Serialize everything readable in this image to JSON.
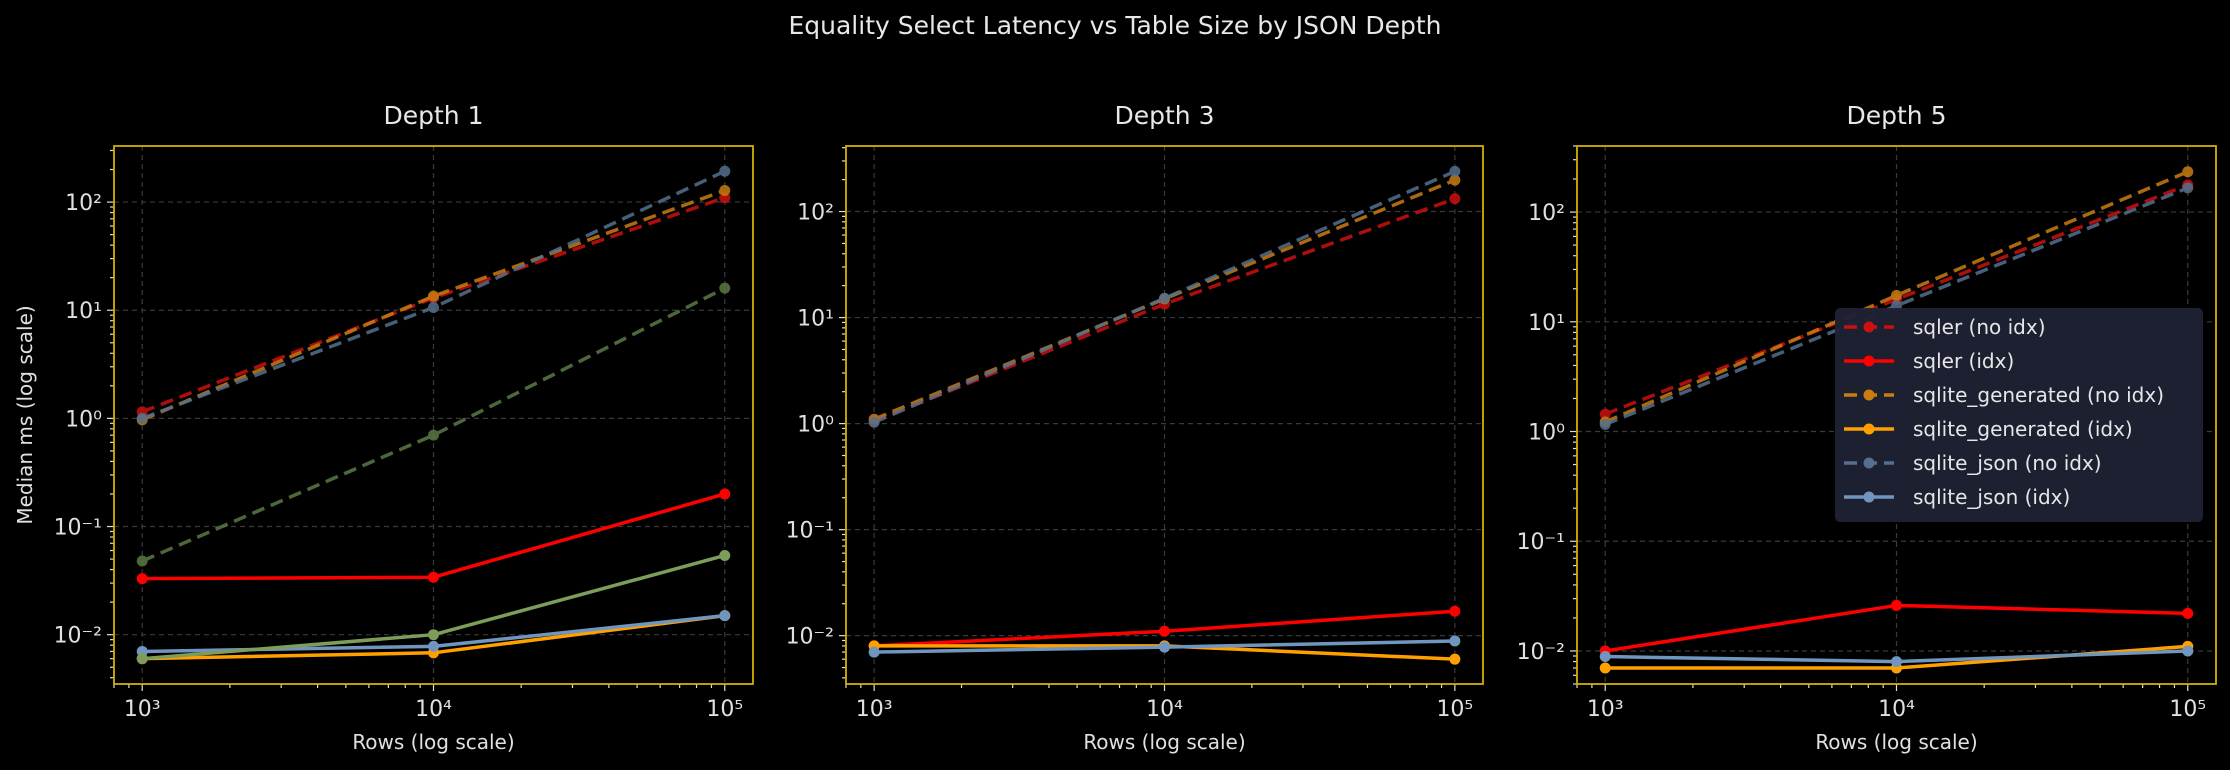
{
  "title": "Equality Select Latency vs Table Size by JSON Depth",
  "chart_data": [
    {
      "type": "line",
      "title": "Depth 1",
      "xlabel": "Rows (log scale)",
      "ylabel": "Median ms (log scale)",
      "xscale": "log",
      "yscale": "log",
      "x": [
        1000,
        10000,
        100000
      ],
      "xlim": [
        800,
        125000
      ],
      "ylim": [
        0.0035,
        330
      ],
      "xticks": [
        1000,
        10000,
        100000
      ],
      "xtick_labels": [
        "10³",
        "10⁴",
        "10⁵"
      ],
      "yticks": [
        0.01,
        0.1,
        1,
        10,
        100
      ],
      "ytick_labels": [
        "10⁻²",
        "10⁻¹",
        "10⁰",
        "10¹",
        "10²"
      ],
      "grid": true,
      "legend": null,
      "series": [
        {
          "name": "sqler (no idx)",
          "style": "dashed",
          "color": "#cc1010",
          "values": [
            1.15,
            13,
            110
          ]
        },
        {
          "name": "sqler (idx)",
          "style": "solid",
          "color": "#ff0000",
          "values": [
            0.033,
            0.034,
            0.2
          ]
        },
        {
          "name": "sqlite_generated (no idx)",
          "style": "dashed",
          "color": "#c97d10",
          "values": [
            0.97,
            13.5,
            128
          ]
        },
        {
          "name": "sqlite_generated (idx)",
          "style": "solid",
          "color": "#ffa000",
          "values": [
            0.006,
            0.0068,
            0.015
          ]
        },
        {
          "name": "sqlite_json (no idx)",
          "style": "dashed",
          "color": "#54708e",
          "values": [
            1.0,
            10.6,
            193
          ]
        },
        {
          "name": "sqlite_json (idx)",
          "style": "solid",
          "color": "#7096bf",
          "values": [
            0.007,
            0.0078,
            0.015
          ]
        },
        {
          "style": "dashed",
          "color": "#5b7a45",
          "values": [
            0.048,
            0.7,
            16
          ]
        },
        {
          "style": "solid",
          "color": "#7d9d5a",
          "values": [
            0.006,
            0.01,
            0.054
          ]
        }
      ]
    },
    {
      "type": "line",
      "title": "Depth 3",
      "xlabel": "Rows (log scale)",
      "xscale": "log",
      "yscale": "log",
      "x": [
        1000,
        10000,
        100000
      ],
      "xlim": [
        800,
        125000
      ],
      "ylim": [
        0.0035,
        415
      ],
      "xticks": [
        1000,
        10000,
        100000
      ],
      "xtick_labels": [
        "10³",
        "10⁴",
        "10⁵"
      ],
      "yticks": [
        0.01,
        0.1,
        1,
        10,
        100
      ],
      "ytick_labels": [
        "10⁻²",
        "10⁻¹",
        "10⁰",
        "10¹",
        "10²"
      ],
      "grid": true,
      "legend": null,
      "series": [
        {
          "name": "sqler (no idx)",
          "style": "dashed",
          "color": "#cc1010",
          "values": [
            1.05,
            13.4,
            132
          ]
        },
        {
          "name": "sqler (idx)",
          "style": "solid",
          "color": "#ff0000",
          "values": [
            0.008,
            0.011,
            0.017
          ]
        },
        {
          "name": "sqlite_generated (no idx)",
          "style": "dashed",
          "color": "#c97d10",
          "values": [
            1.1,
            15,
            198
          ]
        },
        {
          "name": "sqlite_generated (idx)",
          "style": "solid",
          "color": "#ffa000",
          "values": [
            0.008,
            0.008,
            0.006
          ]
        },
        {
          "name": "sqlite_json (no idx)",
          "style": "dashed",
          "color": "#54708e",
          "values": [
            1.03,
            15.2,
            239
          ]
        },
        {
          "name": "sqlite_json (idx)",
          "style": "solid",
          "color": "#7096bf",
          "values": [
            0.007,
            0.0078,
            0.0089
          ]
        }
      ]
    },
    {
      "type": "line",
      "title": "Depth 5",
      "xlabel": "Rows (log scale)",
      "xscale": "log",
      "yscale": "log",
      "x": [
        1000,
        10000,
        100000
      ],
      "xlim": [
        800,
        125000
      ],
      "ylim": [
        0.005,
        400
      ],
      "xticks": [
        1000,
        10000,
        100000
      ],
      "xtick_labels": [
        "10³",
        "10⁴",
        "10⁵"
      ],
      "yticks": [
        0.01,
        0.1,
        1,
        10,
        100
      ],
      "ytick_labels": [
        "10⁻²",
        "10⁻¹",
        "10⁰",
        "10¹",
        "10²"
      ],
      "grid": true,
      "legend": "center-right",
      "legend_bg": "#1e2133",
      "series": [
        {
          "name": "sqler (no idx)",
          "style": "dashed",
          "color": "#cc1010",
          "values": [
            1.44,
            16,
            177
          ]
        },
        {
          "name": "sqler (idx)",
          "style": "solid",
          "color": "#ff0000",
          "values": [
            0.01,
            0.026,
            0.022
          ]
        },
        {
          "name": "sqlite_generated (no idx)",
          "style": "dashed",
          "color": "#c97d10",
          "values": [
            1.22,
            17.4,
            233
          ]
        },
        {
          "name": "sqlite_generated (idx)",
          "style": "solid",
          "color": "#ffa000",
          "values": [
            0.007,
            0.007,
            0.011
          ]
        },
        {
          "name": "sqlite_json (no idx)",
          "style": "dashed",
          "color": "#54708e",
          "values": [
            1.16,
            14,
            166
          ]
        },
        {
          "name": "sqlite_json (idx)",
          "style": "solid",
          "color": "#7096bf",
          "values": [
            0.0089,
            0.008,
            0.01
          ]
        }
      ]
    }
  ],
  "colors": {
    "axes_edge": "#d4b000",
    "background": "#000000",
    "grid": "#3a3a3a",
    "text": "#e0e0e0"
  }
}
